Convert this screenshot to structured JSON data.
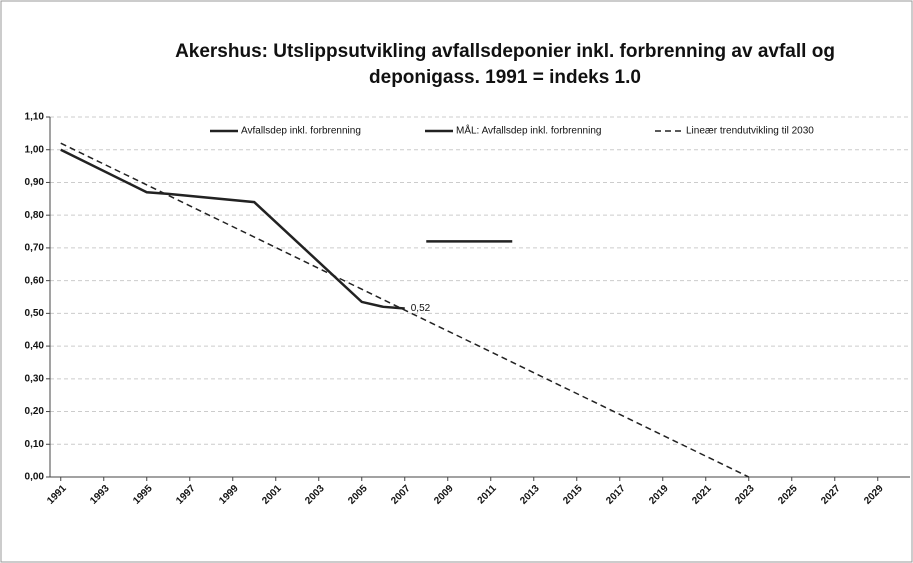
{
  "chart_data": {
    "type": "line",
    "title": [
      "Akershus: Utslippsutvikling avfallsdeponier inkl. forbrenning av avfall og",
      "deponigass. 1991 = indeks  1.0"
    ],
    "xlim": [
      1990.5,
      2030.5
    ],
    "xticks": [
      1991,
      1993,
      1995,
      1997,
      1999,
      2001,
      2003,
      2005,
      2007,
      2009,
      2011,
      2013,
      2015,
      2017,
      2019,
      2021,
      2023,
      2025,
      2027,
      2029
    ],
    "ylim": [
      0,
      1.1
    ],
    "yticks": [
      {
        "value": 0,
        "label": "0,00"
      },
      {
        "value": 0.1,
        "label": "0,10"
      },
      {
        "value": 0.2,
        "label": "0,20"
      },
      {
        "value": 0.3,
        "label": "0,30"
      },
      {
        "value": 0.4,
        "label": "0,40"
      },
      {
        "value": 0.5,
        "label": "0,50"
      },
      {
        "value": 0.6,
        "label": "0,60"
      },
      {
        "value": 0.7,
        "label": "0,70"
      },
      {
        "value": 0.8,
        "label": "0,80"
      },
      {
        "value": 0.9,
        "label": "0,90"
      },
      {
        "value": 1.0,
        "label": "1,00"
      },
      {
        "value": 1.1,
        "label": "1,10"
      }
    ],
    "grid": true,
    "series": [
      {
        "name": "Avfallsdep inkl. forbrenning",
        "color": "#222",
        "dash": false,
        "x": [
          1991,
          1995,
          1996,
          2000,
          2005,
          2006,
          2007
        ],
        "values": [
          1.0,
          0.87,
          0.865,
          0.84,
          0.535,
          0.52,
          0.515
        ],
        "value_labels": [
          null,
          null,
          null,
          null,
          null,
          null,
          "0,52"
        ]
      },
      {
        "name": "MÅL: Avfallsdep inkl. forbrenning",
        "color": "#222",
        "dash": false,
        "x": [
          2008,
          2012
        ],
        "values": [
          0.72,
          0.72
        ]
      },
      {
        "name": "Lineær trendutvikling til 2030",
        "color": "#222",
        "dash": true,
        "x": [
          1991,
          2023
        ],
        "values": [
          1.02,
          0.0
        ]
      }
    ]
  }
}
